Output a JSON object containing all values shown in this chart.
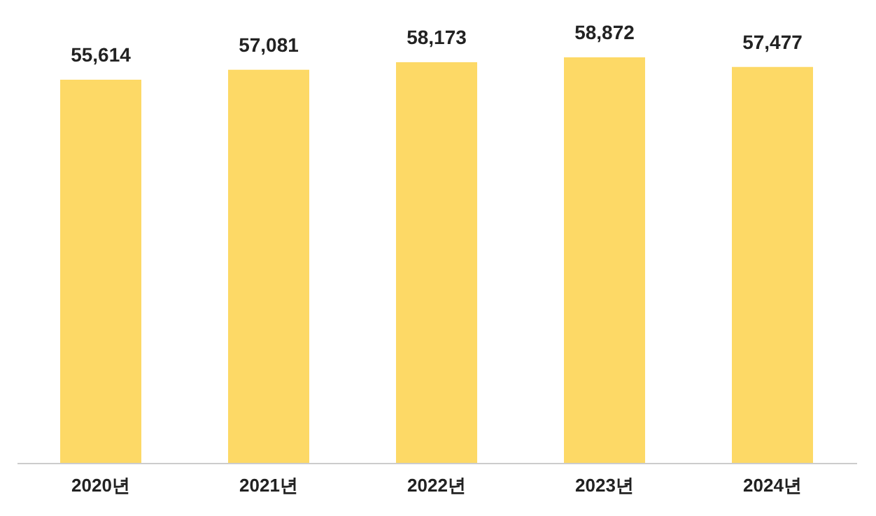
{
  "chart_data": {
    "type": "bar",
    "categories": [
      "2020년",
      "2021년",
      "2022년",
      "2023년",
      "2024년"
    ],
    "values": [
      55614,
      57081,
      58173,
      58872,
      57477
    ],
    "value_labels": [
      "55,614",
      "57,081",
      "58,173",
      "58,872",
      "57,477"
    ],
    "color": "#fdd966",
    "tick_labels": "x",
    "grid": false
  }
}
